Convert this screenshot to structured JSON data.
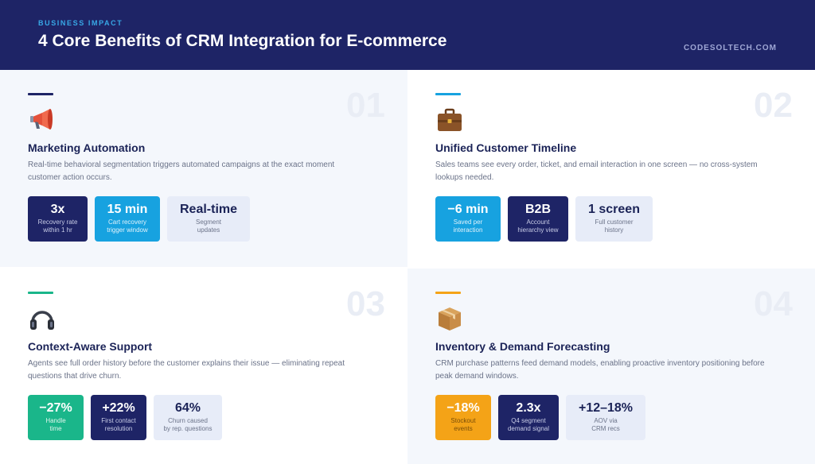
{
  "header": {
    "eyebrow": "BUSINESS IMPACT",
    "title": "4 Core Benefits of CRM Integration for E-commerce",
    "site": "CODESOLTECH.COM"
  },
  "cards": [
    {
      "number": "01",
      "accent": "#1e2466",
      "icon": "megaphone-icon",
      "title": "Marketing Automation",
      "desc_line1": "Real-time behavioral segmentation triggers automated campaigns at the exact moment",
      "desc_line2": "customer action occurs.",
      "stats": [
        {
          "value": "3x",
          "label1": "Recovery rate",
          "label2": "within 1 hr"
        },
        {
          "value": "15 min",
          "label1": "Cart recovery",
          "label2": "trigger window"
        },
        {
          "value": "Real-time",
          "label1": "Segment",
          "label2": "updates"
        }
      ]
    },
    {
      "number": "02",
      "accent": "#17a2e0",
      "icon": "briefcase-icon",
      "title": "Unified Customer Timeline",
      "desc_line1": "Sales teams see every order, ticket, and email interaction in one screen — no cross-system",
      "desc_line2": "lookups needed.",
      "stats": [
        {
          "value": "−6 min",
          "label1": "Saved per",
          "label2": "interaction"
        },
        {
          "value": "B2B",
          "label1": "Account",
          "label2": "hierarchy view"
        },
        {
          "value": "1 screen",
          "label1": "Full customer",
          "label2": "history"
        }
      ]
    },
    {
      "number": "03",
      "accent": "#1ab68a",
      "icon": "headphones-icon",
      "title": "Context-Aware Support",
      "desc_line1": "Agents see full order history before the customer explains their issue — eliminating repeat",
      "desc_line2": "questions that drive churn.",
      "stats": [
        {
          "value": "−27%",
          "label1": "Handle",
          "label2": "time"
        },
        {
          "value": "+22%",
          "label1": "First contact",
          "label2": "resolution"
        },
        {
          "value": "64%",
          "label1": "Churn caused",
          "label2": "by rep. questions"
        }
      ]
    },
    {
      "number": "04",
      "accent": "#f4a317",
      "icon": "package-icon",
      "title": "Inventory & Demand Forecasting",
      "desc_line1": "CRM purchase patterns feed demand models, enabling proactive inventory positioning before",
      "desc_line2": "peak demand windows.",
      "stats": [
        {
          "value": "−18%",
          "label1": "Stockout",
          "label2": "events"
        },
        {
          "value": "2.3x",
          "label1": "Q4 segment",
          "label2": "demand signal"
        },
        {
          "value": "+12–18%",
          "label1": "AOV via",
          "label2": "CRM recs"
        }
      ]
    }
  ]
}
